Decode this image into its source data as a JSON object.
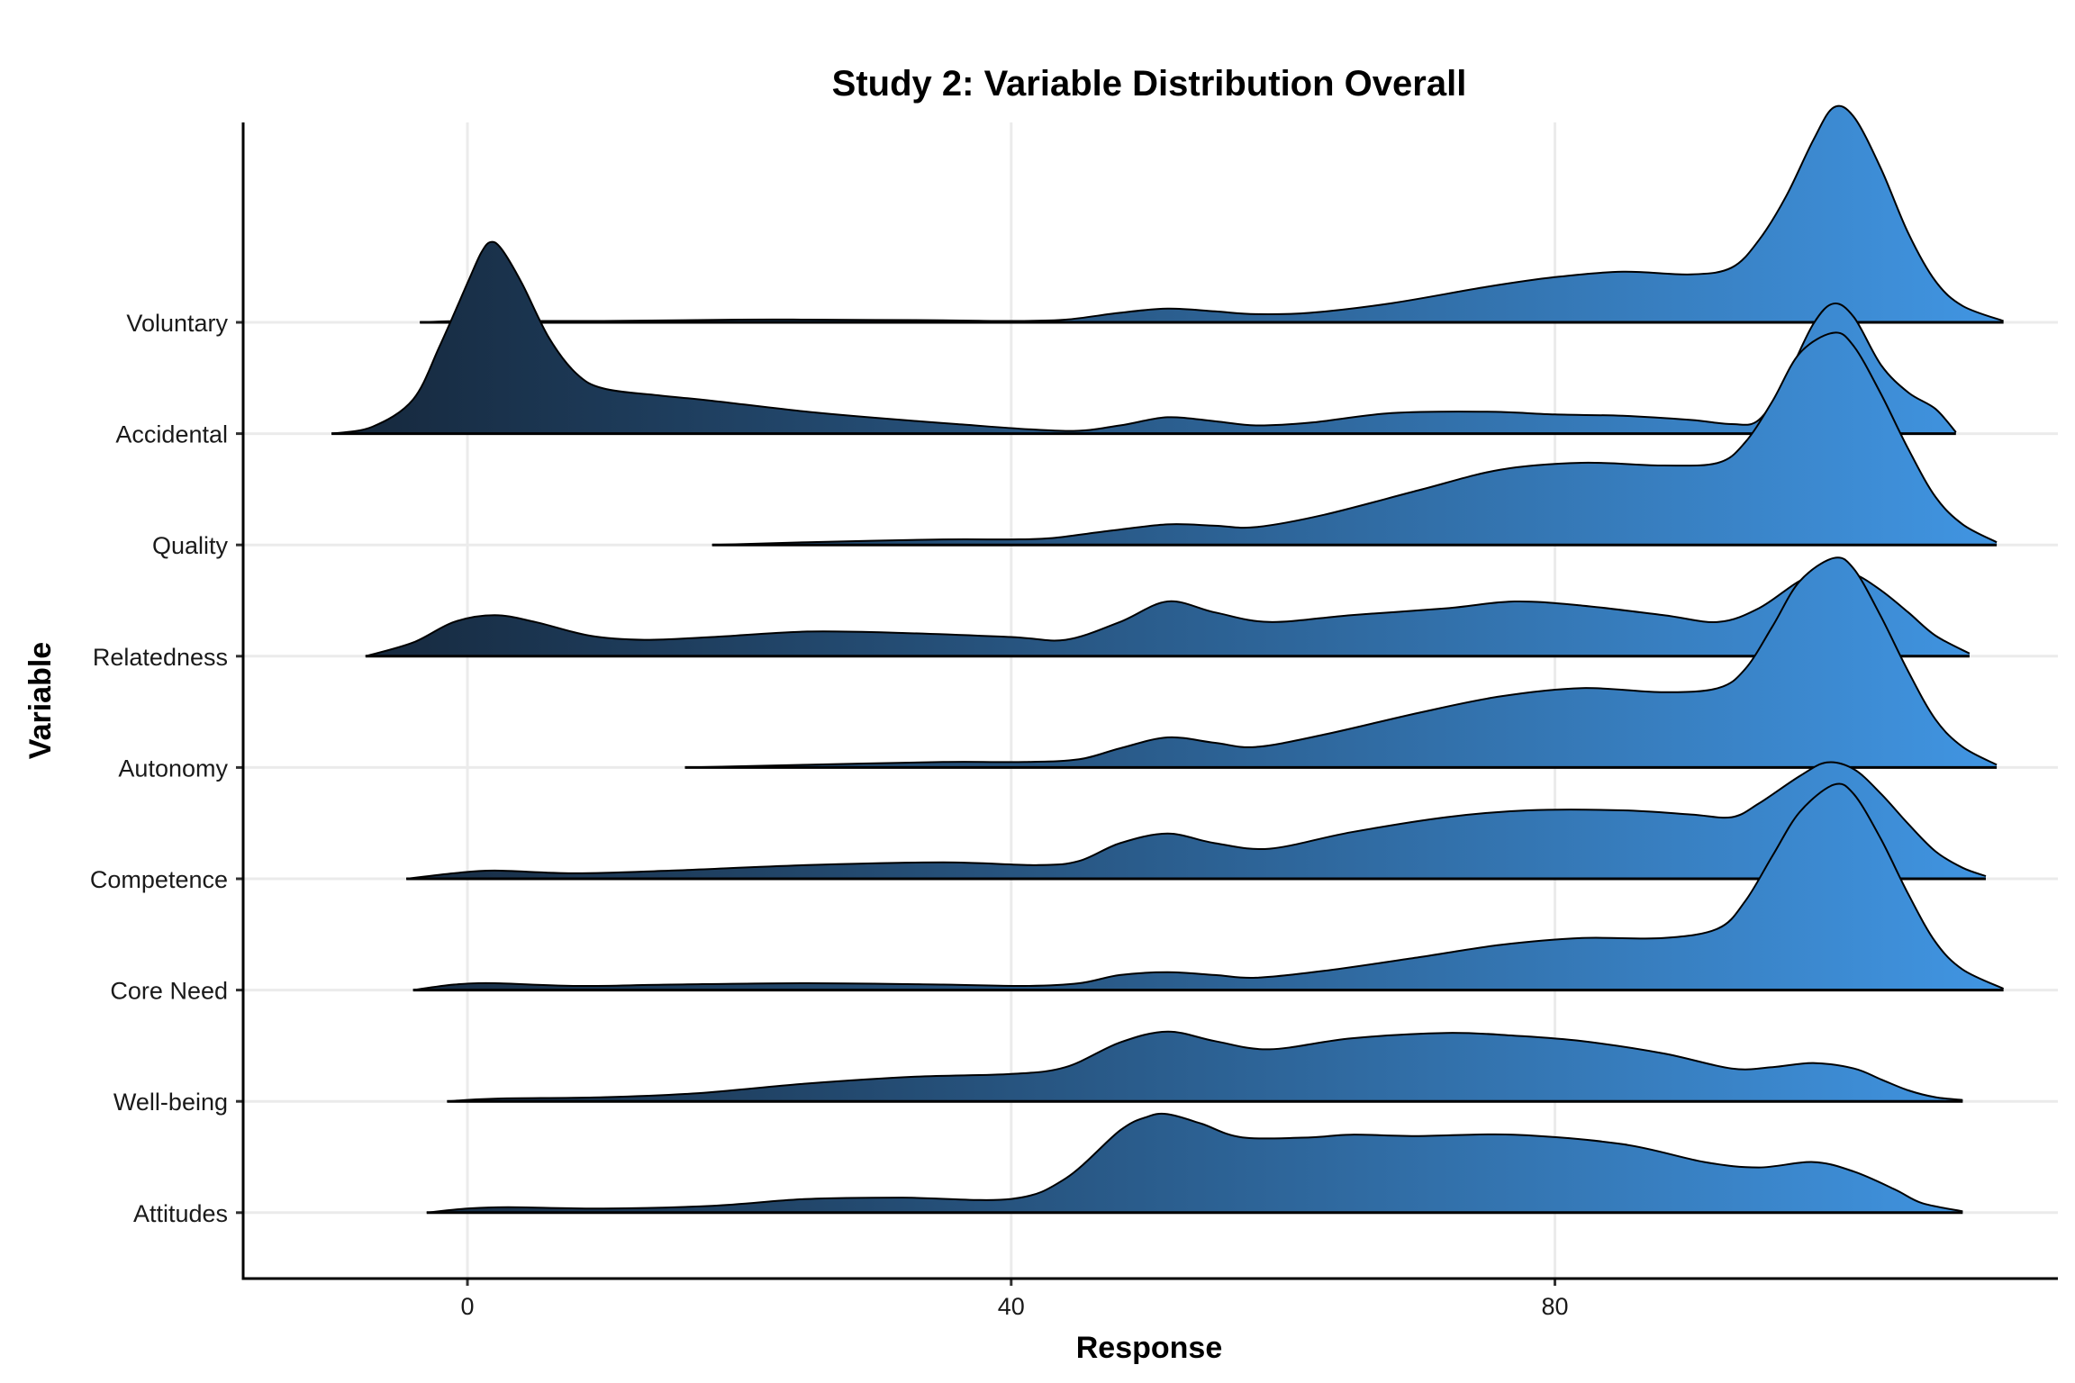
{
  "chart_data": {
    "type": "ridgeline",
    "title": "Study 2: Variable Distribution Overall",
    "xlabel": "Response",
    "ylabel": "Variable",
    "xlim": [
      -16.5,
      117
    ],
    "x_ticks": [
      0,
      40,
      80
    ],
    "grid": true,
    "fill_gradient": {
      "from": "#132132",
      "to": "#4299e8",
      "by": "x"
    },
    "categories": [
      "Voluntary",
      "Accidental",
      "Quality",
      "Relatedness",
      "Autonomy",
      "Competence",
      "Core Need",
      "Well-being",
      "Attitudes"
    ],
    "series": [
      {
        "label": "Voluntary",
        "points": [
          [
            -3.5,
            0
          ],
          [
            0,
            0.01
          ],
          [
            10,
            0.01
          ],
          [
            20,
            0.02
          ],
          [
            25,
            0.02
          ],
          [
            35,
            0.015
          ],
          [
            40,
            0.01
          ],
          [
            44,
            0.02
          ],
          [
            48,
            0.07
          ],
          [
            51.5,
            0.1
          ],
          [
            55,
            0.08
          ],
          [
            58,
            0.06
          ],
          [
            62,
            0.07
          ],
          [
            68,
            0.14
          ],
          [
            75,
            0.26
          ],
          [
            80,
            0.33
          ],
          [
            85,
            0.37
          ],
          [
            90,
            0.35
          ],
          [
            93,
            0.4
          ],
          [
            95,
            0.6
          ],
          [
            97,
            0.92
          ],
          [
            99,
            1.33
          ],
          [
            100.5,
            1.57
          ],
          [
            102,
            1.5
          ],
          [
            104,
            1.12
          ],
          [
            106,
            0.65
          ],
          [
            108,
            0.3
          ],
          [
            110,
            0.12
          ],
          [
            113,
            0.01
          ]
        ]
      },
      {
        "label": "Accidental",
        "points": [
          [
            -10,
            0
          ],
          [
            -7,
            0.05
          ],
          [
            -4,
            0.25
          ],
          [
            -2,
            0.65
          ],
          [
            0,
            1.1
          ],
          [
            1,
            1.32
          ],
          [
            1.7,
            1.4
          ],
          [
            2.5,
            1.35
          ],
          [
            4,
            1.1
          ],
          [
            6,
            0.7
          ],
          [
            8,
            0.44
          ],
          [
            10,
            0.33
          ],
          [
            14,
            0.28
          ],
          [
            18,
            0.24
          ],
          [
            26,
            0.15
          ],
          [
            36,
            0.07
          ],
          [
            44,
            0.02
          ],
          [
            48,
            0.06
          ],
          [
            51.5,
            0.12
          ],
          [
            55,
            0.09
          ],
          [
            58,
            0.06
          ],
          [
            62,
            0.08
          ],
          [
            68,
            0.15
          ],
          [
            75,
            0.16
          ],
          [
            80,
            0.14
          ],
          [
            85,
            0.13
          ],
          [
            90,
            0.1
          ],
          [
            93,
            0.07
          ],
          [
            95,
            0.1
          ],
          [
            97,
            0.4
          ],
          [
            99,
            0.8
          ],
          [
            100.5,
            0.95
          ],
          [
            102,
            0.85
          ],
          [
            104,
            0.5
          ],
          [
            106,
            0.3
          ],
          [
            108,
            0.18
          ],
          [
            109.5,
            0.01
          ]
        ]
      },
      {
        "label": "Quality",
        "points": [
          [
            18,
            0
          ],
          [
            25,
            0.02
          ],
          [
            35,
            0.04
          ],
          [
            40,
            0.04
          ],
          [
            43,
            0.05
          ],
          [
            47,
            0.1
          ],
          [
            51.5,
            0.15
          ],
          [
            55,
            0.14
          ],
          [
            58,
            0.13
          ],
          [
            63,
            0.22
          ],
          [
            70,
            0.4
          ],
          [
            76,
            0.55
          ],
          [
            82,
            0.6
          ],
          [
            88,
            0.58
          ],
          [
            92,
            0.6
          ],
          [
            94,
            0.75
          ],
          [
            96,
            1.05
          ],
          [
            98,
            1.4
          ],
          [
            100.5,
            1.55
          ],
          [
            102,
            1.45
          ],
          [
            104,
            1.1
          ],
          [
            106,
            0.7
          ],
          [
            108,
            0.35
          ],
          [
            110,
            0.15
          ],
          [
            112.5,
            0.02
          ]
        ]
      },
      {
        "label": "Relatedness",
        "points": [
          [
            -7.5,
            0
          ],
          [
            -4,
            0.1
          ],
          [
            -1,
            0.25
          ],
          [
            2,
            0.3
          ],
          [
            5,
            0.25
          ],
          [
            9,
            0.15
          ],
          [
            13,
            0.12
          ],
          [
            18,
            0.14
          ],
          [
            25,
            0.18
          ],
          [
            32,
            0.17
          ],
          [
            40,
            0.14
          ],
          [
            44,
            0.12
          ],
          [
            48,
            0.25
          ],
          [
            51.5,
            0.4
          ],
          [
            55,
            0.32
          ],
          [
            59,
            0.25
          ],
          [
            65,
            0.3
          ],
          [
            72,
            0.35
          ],
          [
            77,
            0.4
          ],
          [
            82,
            0.37
          ],
          [
            88,
            0.3
          ],
          [
            92,
            0.25
          ],
          [
            95,
            0.35
          ],
          [
            98,
            0.55
          ],
          [
            100,
            0.62
          ],
          [
            102,
            0.6
          ],
          [
            104,
            0.48
          ],
          [
            106,
            0.32
          ],
          [
            108,
            0.15
          ],
          [
            110.5,
            0.02
          ]
        ]
      },
      {
        "label": "Autonomy",
        "points": [
          [
            16,
            0
          ],
          [
            25,
            0.02
          ],
          [
            35,
            0.04
          ],
          [
            41,
            0.04
          ],
          [
            45,
            0.06
          ],
          [
            48,
            0.14
          ],
          [
            51.5,
            0.22
          ],
          [
            55,
            0.18
          ],
          [
            58,
            0.15
          ],
          [
            63,
            0.24
          ],
          [
            70,
            0.4
          ],
          [
            76,
            0.52
          ],
          [
            82,
            0.58
          ],
          [
            88,
            0.55
          ],
          [
            92,
            0.58
          ],
          [
            94,
            0.72
          ],
          [
            96,
            1.03
          ],
          [
            98,
            1.36
          ],
          [
            100.5,
            1.53
          ],
          [
            102,
            1.45
          ],
          [
            104,
            1.1
          ],
          [
            106,
            0.7
          ],
          [
            108,
            0.35
          ],
          [
            110,
            0.15
          ],
          [
            112.5,
            0.02
          ]
        ]
      },
      {
        "label": "Competence",
        "points": [
          [
            -4.5,
            0
          ],
          [
            -1,
            0.04
          ],
          [
            2,
            0.06
          ],
          [
            8,
            0.04
          ],
          [
            15,
            0.06
          ],
          [
            25,
            0.1
          ],
          [
            35,
            0.12
          ],
          [
            42,
            0.1
          ],
          [
            45,
            0.13
          ],
          [
            48,
            0.26
          ],
          [
            51.5,
            0.33
          ],
          [
            55,
            0.26
          ],
          [
            59,
            0.22
          ],
          [
            65,
            0.34
          ],
          [
            72,
            0.45
          ],
          [
            78,
            0.5
          ],
          [
            85,
            0.5
          ],
          [
            90,
            0.47
          ],
          [
            93,
            0.45
          ],
          [
            95,
            0.55
          ],
          [
            98,
            0.75
          ],
          [
            100,
            0.85
          ],
          [
            102,
            0.8
          ],
          [
            104,
            0.62
          ],
          [
            106,
            0.4
          ],
          [
            108,
            0.2
          ],
          [
            110,
            0.08
          ],
          [
            111.7,
            0.02
          ]
        ]
      },
      {
        "label": "Core Need",
        "points": [
          [
            -4,
            0
          ],
          [
            -1,
            0.04
          ],
          [
            2,
            0.05
          ],
          [
            8,
            0.03
          ],
          [
            15,
            0.04
          ],
          [
            25,
            0.05
          ],
          [
            35,
            0.04
          ],
          [
            41,
            0.03
          ],
          [
            45,
            0.05
          ],
          [
            48,
            0.11
          ],
          [
            51.5,
            0.13
          ],
          [
            55,
            0.11
          ],
          [
            58,
            0.09
          ],
          [
            63,
            0.14
          ],
          [
            70,
            0.24
          ],
          [
            76,
            0.33
          ],
          [
            82,
            0.38
          ],
          [
            88,
            0.38
          ],
          [
            92,
            0.45
          ],
          [
            94,
            0.65
          ],
          [
            96,
            0.98
          ],
          [
            98,
            1.3
          ],
          [
            100.5,
            1.5
          ],
          [
            102,
            1.43
          ],
          [
            104,
            1.1
          ],
          [
            106,
            0.7
          ],
          [
            108,
            0.35
          ],
          [
            110,
            0.15
          ],
          [
            113,
            0.01
          ]
        ]
      },
      {
        "label": "Well-being",
        "points": [
          [
            -1.5,
            0
          ],
          [
            2,
            0.02
          ],
          [
            10,
            0.03
          ],
          [
            17,
            0.06
          ],
          [
            25,
            0.13
          ],
          [
            33,
            0.18
          ],
          [
            40,
            0.2
          ],
          [
            44,
            0.25
          ],
          [
            48,
            0.43
          ],
          [
            51.5,
            0.51
          ],
          [
            55,
            0.44
          ],
          [
            59,
            0.38
          ],
          [
            65,
            0.46
          ],
          [
            72,
            0.5
          ],
          [
            77,
            0.48
          ],
          [
            82,
            0.44
          ],
          [
            88,
            0.35
          ],
          [
            93,
            0.24
          ],
          [
            96,
            0.25
          ],
          [
            99,
            0.28
          ],
          [
            102,
            0.24
          ],
          [
            104,
            0.16
          ],
          [
            106,
            0.08
          ],
          [
            108,
            0.03
          ],
          [
            110,
            0.01
          ]
        ]
      },
      {
        "label": "Attitudes",
        "points": [
          [
            -3,
            0
          ],
          [
            0,
            0.03
          ],
          [
            3,
            0.04
          ],
          [
            10,
            0.03
          ],
          [
            18,
            0.05
          ],
          [
            25,
            0.1
          ],
          [
            32,
            0.11
          ],
          [
            40,
            0.1
          ],
          [
            44,
            0.25
          ],
          [
            48,
            0.6
          ],
          [
            50,
            0.7
          ],
          [
            51.5,
            0.72
          ],
          [
            54,
            0.65
          ],
          [
            57,
            0.55
          ],
          [
            62,
            0.55
          ],
          [
            65,
            0.57
          ],
          [
            70,
            0.56
          ],
          [
            77,
            0.57
          ],
          [
            85,
            0.5
          ],
          [
            91,
            0.37
          ],
          [
            95,
            0.33
          ],
          [
            99,
            0.37
          ],
          [
            102,
            0.3
          ],
          [
            105,
            0.17
          ],
          [
            107,
            0.07
          ],
          [
            110,
            0.01
          ]
        ]
      }
    ]
  }
}
